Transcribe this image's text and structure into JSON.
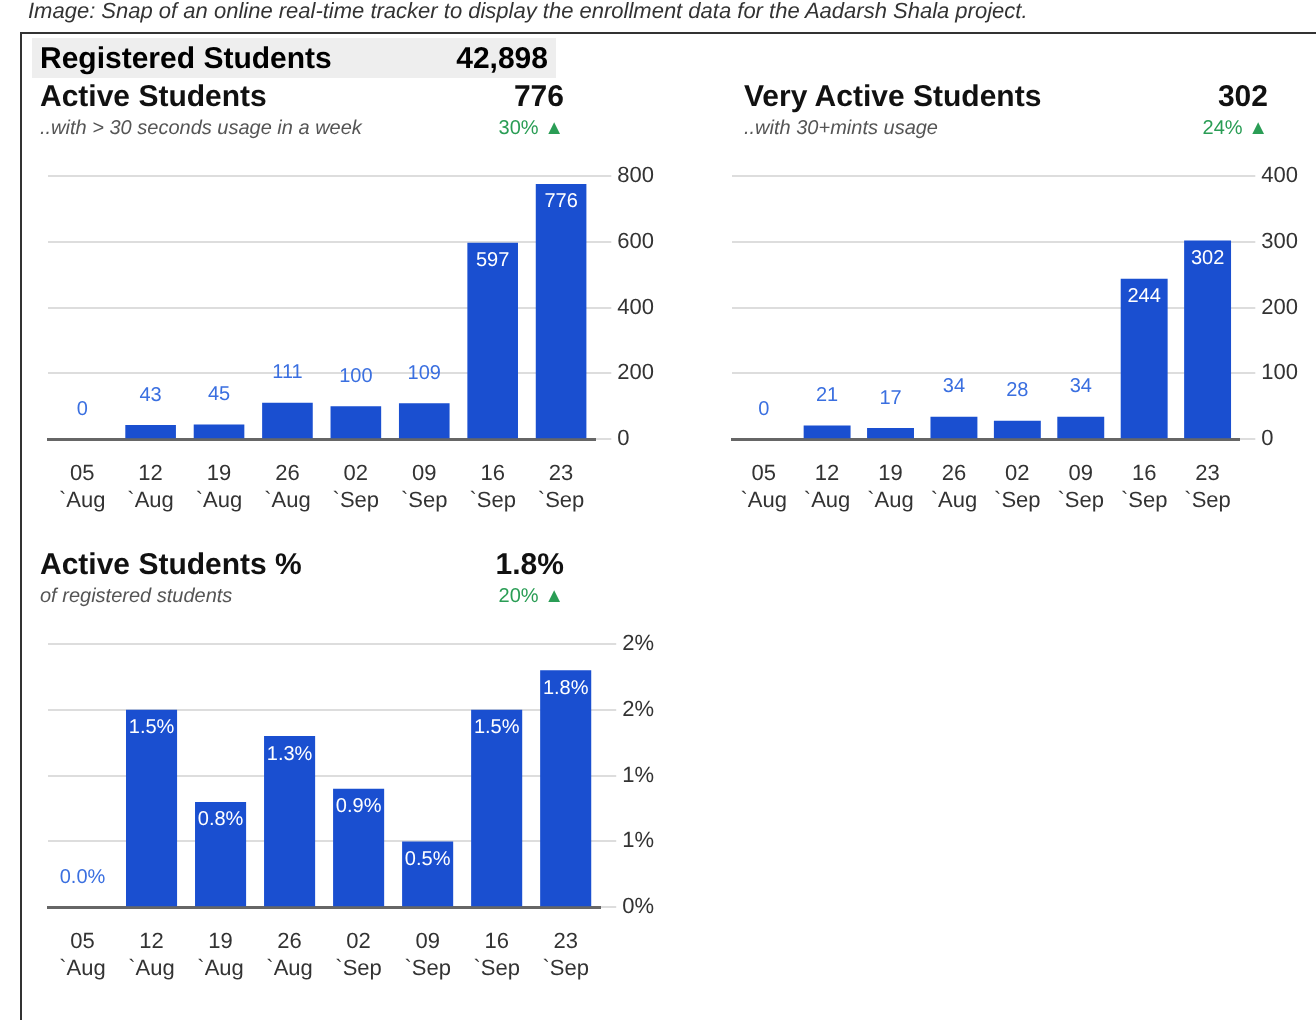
{
  "chart_data": [
    {
      "type": "bar",
      "title": "Active Students",
      "subtitle": "..with > 30 seconds usage in a week",
      "annotations": [
        "Image: Snap of an online real-time tracker to display the enrollment data for the Aadarsh Shala project.",
        "Registered Students",
        "42,898",
        "776",
        "30% ▲"
      ],
      "categories": [
        "05 `Aug",
        "12 `Aug",
        "19 `Aug",
        "26 `Aug",
        "02 `Sep",
        "09 `Sep",
        "16 `Sep",
        "23 `Sep"
      ],
      "values": [
        0,
        43,
        45,
        111,
        100,
        109,
        597,
        776
      ],
      "color": "#1a4fd0",
      "ylim": [
        0,
        800
      ],
      "yticks": [
        0,
        200,
        400,
        600,
        800
      ],
      "grid": "y",
      "data_labels": true
    },
    {
      "type": "bar",
      "title": "Very Active Students",
      "subtitle": "..with 30+mints usage",
      "annotations": [
        "302",
        "24% ▲"
      ],
      "categories": [
        "05 `Aug",
        "12 `Aug",
        "19 `Aug",
        "26 `Aug",
        "02 `Sep",
        "09 `Sep",
        "16 `Sep",
        "23 `Sep"
      ],
      "values": [
        0,
        21,
        17,
        34,
        28,
        34,
        244,
        302
      ],
      "color": "#1a4fd0",
      "ylim": [
        0,
        400
      ],
      "yticks": [
        0,
        100,
        200,
        300,
        400
      ],
      "grid": "y",
      "data_labels": true
    },
    {
      "type": "bar",
      "title": "Active Students %",
      "subtitle": "of registered students",
      "annotations": [
        "1.8%",
        "20% ▲"
      ],
      "categories": [
        "05 `Aug",
        "12 `Aug",
        "19 `Aug",
        "26 `Aug",
        "02 `Sep",
        "09 `Sep",
        "16 `Sep",
        "23 `Sep"
      ],
      "values": [
        0,
        1.5,
        0.8,
        1.3,
        0.9,
        0.5,
        1.5,
        1.8
      ],
      "color": "#1a4fd0",
      "value_labels": [
        "0.0%",
        "1.5%",
        "0.8%",
        "1.3%",
        "0.9%",
        "0.5%",
        "1.5%",
        "1.8%"
      ],
      "ylim": [
        0,
        2
      ],
      "yticks": [
        {
          "value": 0,
          "label": "0%"
        },
        {
          "value": 0.5,
          "label": "1%"
        },
        {
          "value": 1,
          "label": "1%"
        },
        {
          "value": 1.5,
          "label": "2%"
        },
        {
          "value": 2,
          "label": "2%"
        }
      ],
      "grid": "y"
    }
  ]
}
